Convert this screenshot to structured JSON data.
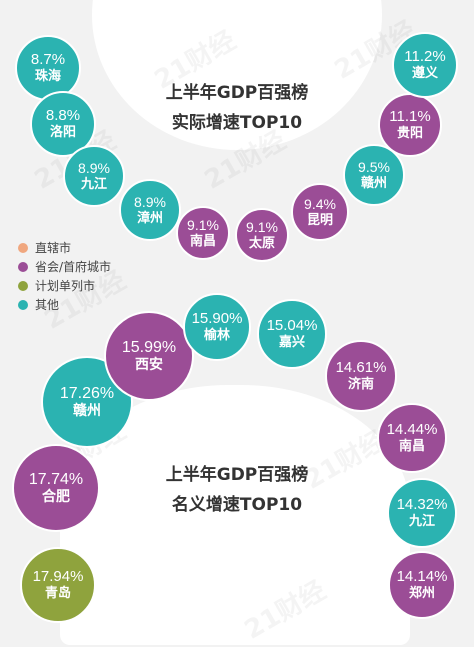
{
  "watermark": "21财经",
  "chart_data": [
    {
      "type": "bubble",
      "title": "上半年GDP百强榜\n实际增速TOP10",
      "points": [
        {
          "city": "珠海",
          "value": 8.7,
          "label": "8.7%",
          "category": "其他"
        },
        {
          "city": "洛阳",
          "value": 8.8,
          "label": "8.8%",
          "category": "其他"
        },
        {
          "city": "九江",
          "value": 8.9,
          "label": "8.9%",
          "category": "其他"
        },
        {
          "city": "漳州",
          "value": 8.9,
          "label": "8.9%",
          "category": "其他"
        },
        {
          "city": "南昌",
          "value": 9.1,
          "label": "9.1%",
          "category": "省会/首府城市"
        },
        {
          "city": "太原",
          "value": 9.1,
          "label": "9.1%",
          "category": "省会/首府城市"
        },
        {
          "city": "昆明",
          "value": 9.4,
          "label": "9.4%",
          "category": "省会/首府城市"
        },
        {
          "city": "赣州",
          "value": 9.5,
          "label": "9.5%",
          "category": "其他"
        },
        {
          "city": "贵阳",
          "value": 11.1,
          "label": "11.1%",
          "category": "省会/首府城市"
        },
        {
          "city": "遵义",
          "value": 11.2,
          "label": "11.2%",
          "category": "其他"
        }
      ]
    },
    {
      "type": "bubble",
      "title": "上半年GDP百强榜\n名义增速TOP10",
      "points": [
        {
          "city": "青岛",
          "value": 17.94,
          "label": "17.94%",
          "category": "计划单列市"
        },
        {
          "city": "合肥",
          "value": 17.74,
          "label": "17.74%",
          "category": "省会/首府城市"
        },
        {
          "city": "赣州",
          "value": 17.26,
          "label": "17.26%",
          "category": "其他"
        },
        {
          "city": "西安",
          "value": 15.99,
          "label": "15.99%",
          "category": "省会/首府城市"
        },
        {
          "city": "榆林",
          "value": 15.9,
          "label": "15.90%",
          "category": "其他"
        },
        {
          "city": "嘉兴",
          "value": 15.04,
          "label": "15.04%",
          "category": "其他"
        },
        {
          "city": "济南",
          "value": 14.61,
          "label": "14.61%",
          "category": "省会/首府城市"
        },
        {
          "city": "南昌",
          "value": 14.44,
          "label": "14.44%",
          "category": "省会/首府城市"
        },
        {
          "city": "九江",
          "value": 14.32,
          "label": "14.32%",
          "category": "其他"
        },
        {
          "city": "郑州",
          "value": 14.14,
          "label": "14.14%",
          "category": "省会/首府城市"
        }
      ]
    }
  ],
  "legend": [
    {
      "label": "直辖市",
      "color": "#f0a77f"
    },
    {
      "label": "省会/首府城市",
      "color": "#9b4d96"
    },
    {
      "label": "计划单列市",
      "color": "#8fa33d"
    },
    {
      "label": "其他",
      "color": "#2bb3b1"
    }
  ]
}
